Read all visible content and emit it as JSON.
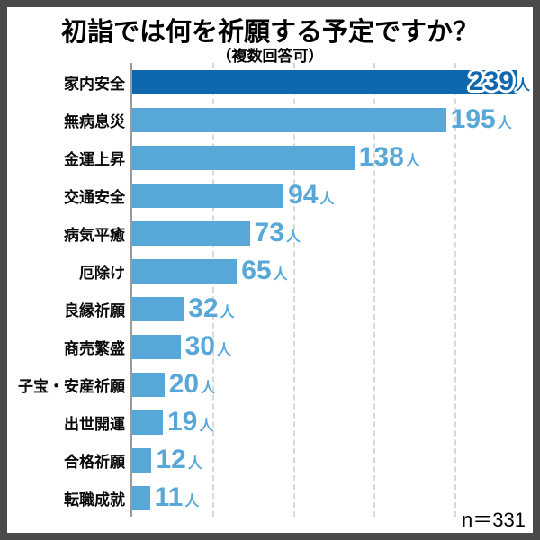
{
  "header": {
    "title": "初詣では何を祈願する予定ですか？",
    "subtitle": "（複数回答可）"
  },
  "footer": {
    "sample_size_label": "n＝331"
  },
  "colors": {
    "border_color": "#4a4a4c",
    "title_text": "#000000",
    "category_text": "#0a0a0a",
    "bar_highlight": "#0f68ad",
    "bar_default": "#57a8d9",
    "value_highlight_text": "#0f68ad",
    "value_default_text": "#57a8d9",
    "axis_line": "#9a9a9a",
    "gridline": "#d8d8d8"
  },
  "chart_data": {
    "type": "bar",
    "orientation": "horizontal",
    "title": "初詣では何を祈願する予定ですか？",
    "subtitle": "（複数回答可）",
    "categories": [
      "家内安全",
      "無病息災",
      "金運上昇",
      "交通安全",
      "病気平癒",
      "厄除け",
      "良縁祈願",
      "商売繁盛",
      "子宝・安産祈願",
      "出世開運",
      "合格祈願",
      "転職成就"
    ],
    "values": [
      239,
      195,
      138,
      94,
      73,
      65,
      32,
      30,
      20,
      19,
      12,
      11
    ],
    "unit": "人",
    "sample_size": 331,
    "xlim": [
      0,
      250
    ],
    "gridline_interval": 50,
    "grid": "vertical-dashed",
    "legend": false,
    "highlight_index": 0,
    "value_label_position": "end-of-bar"
  }
}
